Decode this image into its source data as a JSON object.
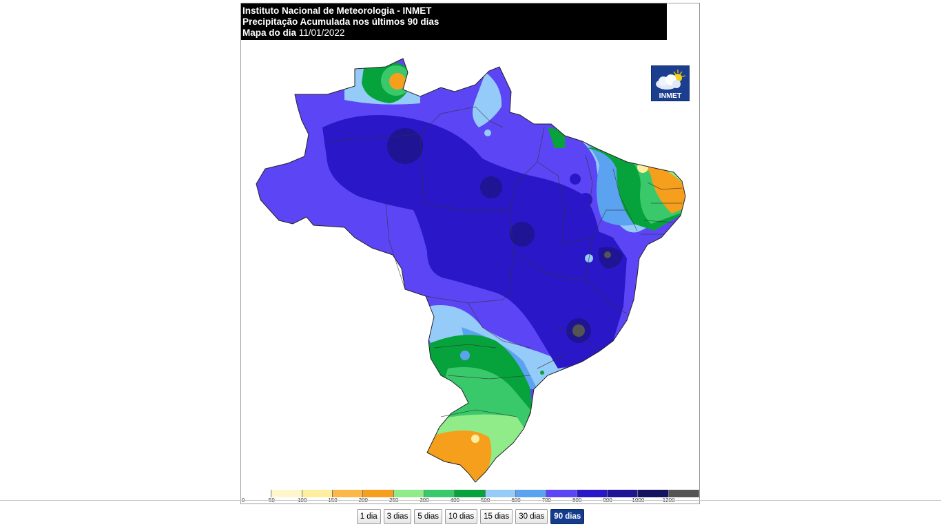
{
  "header": {
    "line1": "Instituto Nacional de Meteorologia - INMET",
    "line2": "Precipitação Acumulada nos últimos 90 dias",
    "date_label": "Mapa do dia",
    "date_value": "11/01/2022"
  },
  "logo": {
    "text": "INMET",
    "icon": "cloud-sun-icon"
  },
  "legend": {
    "colors": [
      "#ffffff",
      "#fff7cc",
      "#fdeea0",
      "#fbb84a",
      "#f59f1c",
      "#8fec88",
      "#3ac96a",
      "#06a33c",
      "#94cbf8",
      "#5ba2f0",
      "#5c45f4",
      "#2a18c8",
      "#1e1494",
      "#141460",
      "#545454"
    ],
    "labels": [
      "0",
      "50",
      "100",
      "150",
      "200",
      "250",
      "300",
      "400",
      "500",
      "600",
      "700",
      "800",
      "900",
      "1000",
      "1200"
    ]
  },
  "buttons": [
    {
      "label": "1 dia",
      "active": false
    },
    {
      "label": "3 dias",
      "active": false
    },
    {
      "label": "5 dias",
      "active": false
    },
    {
      "label": "10 dias",
      "active": false
    },
    {
      "label": "15 dias",
      "active": false
    },
    {
      "label": "30 dias",
      "active": false
    },
    {
      "label": "90 dias",
      "active": true
    }
  ]
}
